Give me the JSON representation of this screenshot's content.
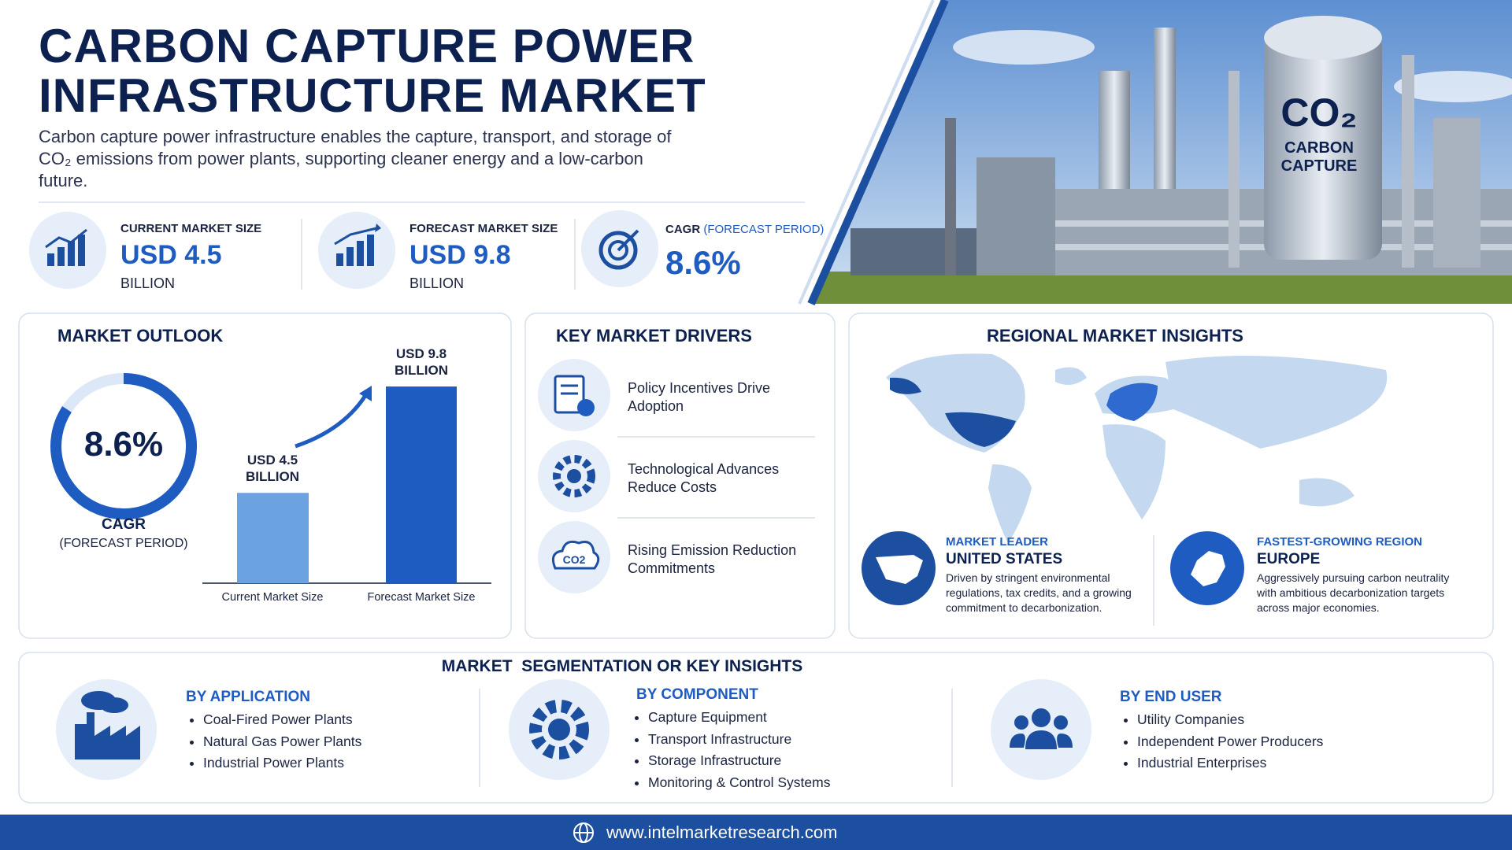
{
  "header": {
    "title_line1": "CARBON CAPTURE POWER",
    "title_line2": "INFRASTRUCTURE MARKET",
    "description": "Carbon capture power infrastructure enables the capture, transport, and storage of CO₂ emissions from power plants, supporting cleaner energy and a low-carbon future."
  },
  "stats": [
    {
      "label": "CURRENT MARKET SIZE",
      "value": "USD 4.5",
      "unit": "BILLION"
    },
    {
      "label": "FORECAST MARKET SIZE",
      "value": "USD 9.8",
      "unit": "BILLION"
    },
    {
      "label": "CAGR",
      "label_note": "(FORECAST PERIOD)",
      "value": "8.6%"
    }
  ],
  "image": {
    "badge_formula": "CO₂",
    "badge_line1": "CARBON",
    "badge_line2": "CAPTURE"
  },
  "market_outlook": {
    "title": "MARKET OUTLOOK",
    "cagr_value": "8.6%",
    "cagr_label": "CAGR",
    "cagr_note": "(FORECAST PERIOD)",
    "chart_data": {
      "type": "bar",
      "categories": [
        "Current Market Size",
        "Forecast Market Size"
      ],
      "values": [
        4.5,
        9.8
      ],
      "value_labels": [
        "USD 4.5 BILLION",
        "USD 9.8 BILLION"
      ],
      "colors": [
        "#6aa3e0",
        "#1e5cc2"
      ]
    }
  },
  "key_drivers": {
    "title": "KEY MARKET DRIVERS",
    "items": [
      "Policy Incentives Drive Adoption",
      "Technological Advances Reduce Costs",
      "Rising Emission Reduction Commitments"
    ]
  },
  "regional": {
    "title": "REGIONAL MARKET INSIGHTS",
    "leader": {
      "tag": "MARKET LEADER",
      "name": "UNITED STATES",
      "text": "Driven by stringent environmental regulations, tax credits, and a growing commitment to decarbonization."
    },
    "fastest": {
      "tag": "FASTEST-GROWING REGION",
      "name": "EUROPE",
      "text": "Aggressively pursuing carbon neutrality with ambitious decarbonization targets across major economies."
    }
  },
  "segmentation": {
    "title": "MARKET  SEGMENTATION OR KEY INSIGHTS",
    "groups": [
      {
        "title": "BY APPLICATION",
        "items": [
          "Coal-Fired Power Plants",
          "Natural Gas Power Plants",
          "Industrial Power Plants"
        ]
      },
      {
        "title": "BY COMPONENT",
        "items": [
          "Capture Equipment",
          "Transport Infrastructure",
          "Storage Infrastructure",
          "Monitoring & Control Systems"
        ]
      },
      {
        "title": "BY END USER",
        "items": [
          "Utility Companies",
          "Independent Power Producers",
          "Industrial Enterprises"
        ]
      }
    ]
  },
  "footer": {
    "url": "www.intelmarketresearch.com"
  }
}
